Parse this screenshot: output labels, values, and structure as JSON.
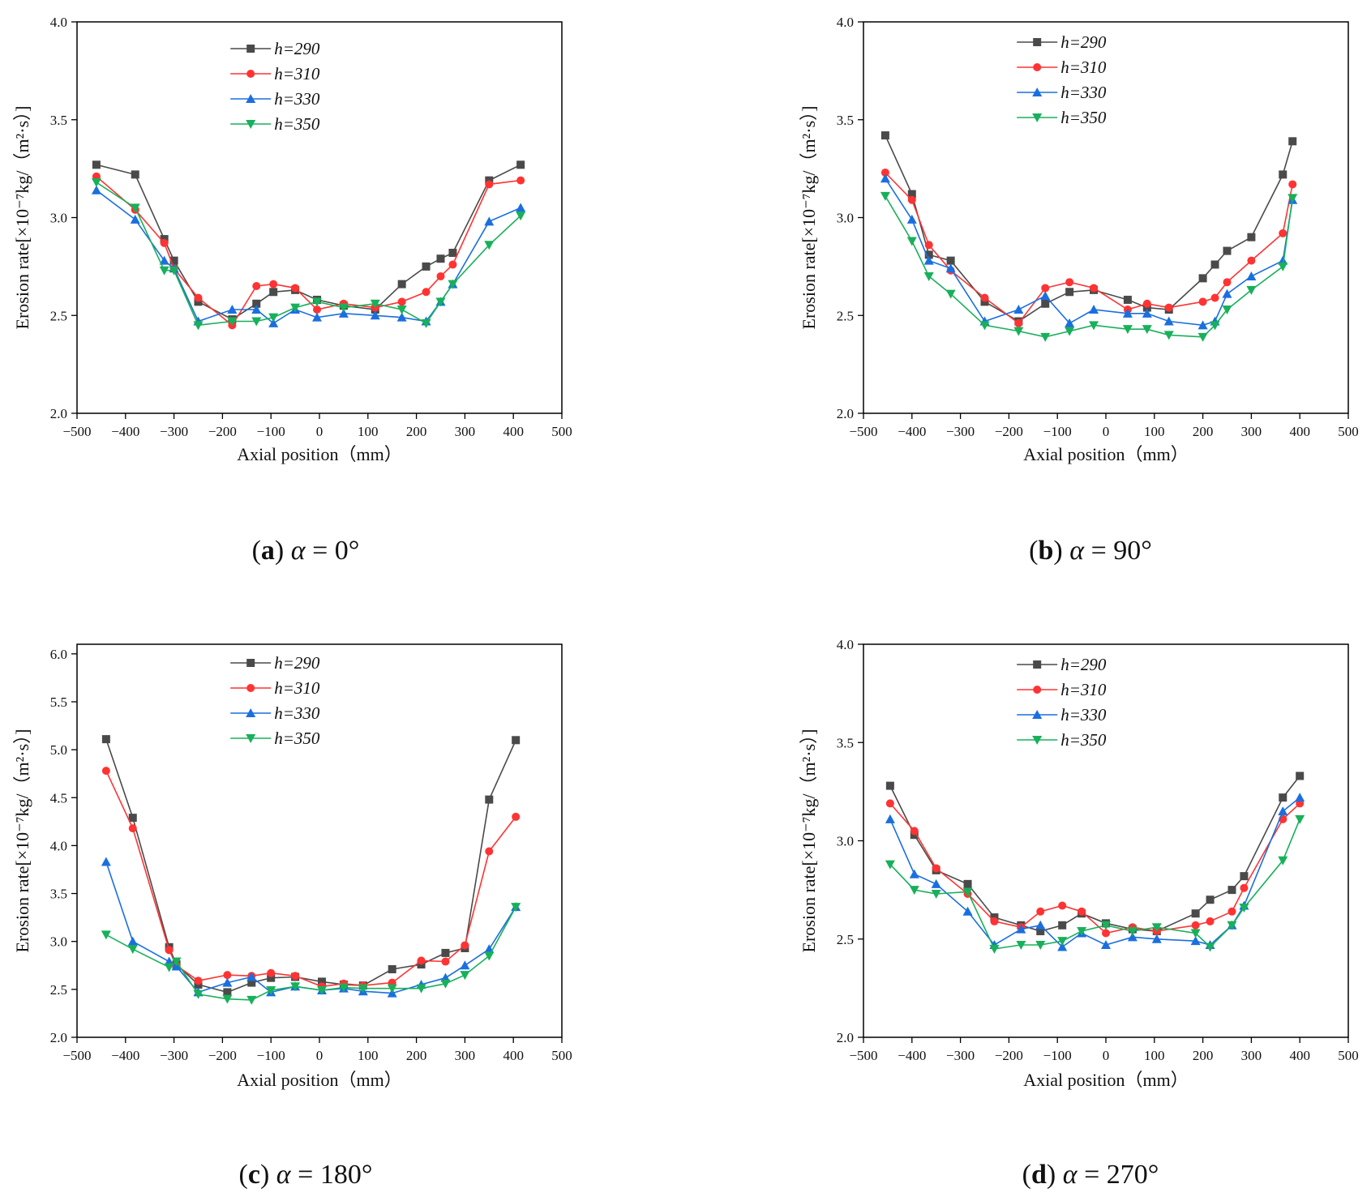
{
  "chart_data": [
    {
      "type": "line",
      "caption": {
        "letter": "a",
        "symbol": "α",
        "value": " = 0°"
      },
      "xlabel": "Axial position（mm）",
      "ylabel": "Erosion rate[×10⁻⁷kg/（m²·s）]",
      "xlim": [
        -500,
        500
      ],
      "ylim": [
        2.0,
        4.0
      ],
      "xticks": [
        "−500",
        "−400",
        "−300",
        "−200",
        "−100",
        "0",
        "100",
        "200",
        "300",
        "400",
        "500"
      ],
      "yticks": [
        "2.0",
        "2.5",
        "3.0",
        "3.5",
        "4.0"
      ],
      "legend_placement": "top-center",
      "series": [
        {
          "name": "h=290",
          "color": "#4a4a4a",
          "marker": "square",
          "x": [
            -460,
            -380,
            -320,
            -300,
            -250,
            -180,
            -130,
            -95,
            -50,
            -5,
            50,
            115,
            170,
            220,
            250,
            275,
            350,
            415
          ],
          "y": [
            3.27,
            3.22,
            2.89,
            2.78,
            2.57,
            2.48,
            2.56,
            2.62,
            2.63,
            2.58,
            2.55,
            2.53,
            2.66,
            2.75,
            2.79,
            2.82,
            3.19,
            3.27
          ]
        },
        {
          "name": "h=310",
          "color": "#ff3333",
          "marker": "circle",
          "x": [
            -460,
            -380,
            -320,
            -300,
            -250,
            -180,
            -130,
            -95,
            -50,
            -5,
            50,
            115,
            170,
            220,
            250,
            275,
            350,
            415
          ],
          "y": [
            3.21,
            3.04,
            2.87,
            2.74,
            2.59,
            2.45,
            2.65,
            2.66,
            2.64,
            2.53,
            2.56,
            2.54,
            2.57,
            2.62,
            2.7,
            2.76,
            3.17,
            3.19
          ]
        },
        {
          "name": "h=330",
          "color": "#1a6fdf",
          "marker": "triangle-up",
          "x": [
            -460,
            -380,
            -320,
            -300,
            -250,
            -180,
            -130,
            -95,
            -50,
            -5,
            50,
            115,
            170,
            220,
            250,
            275,
            350,
            415
          ],
          "y": [
            3.14,
            2.99,
            2.78,
            2.74,
            2.47,
            2.53,
            2.53,
            2.46,
            2.53,
            2.49,
            2.51,
            2.5,
            2.49,
            2.47,
            2.57,
            2.66,
            2.98,
            3.05
          ]
        },
        {
          "name": "h=350",
          "color": "#18b05a",
          "marker": "triangle-down",
          "x": [
            -460,
            -380,
            -320,
            -300,
            -250,
            -180,
            -130,
            -95,
            -50,
            -5,
            50,
            115,
            170,
            220,
            250,
            275,
            350,
            415
          ],
          "y": [
            3.18,
            3.05,
            2.73,
            2.73,
            2.45,
            2.47,
            2.47,
            2.49,
            2.54,
            2.57,
            2.54,
            2.56,
            2.53,
            2.46,
            2.57,
            2.66,
            2.86,
            3.01
          ]
        }
      ]
    },
    {
      "type": "line",
      "caption": {
        "letter": "b",
        "symbol": "α",
        "value": " = 90°"
      },
      "xlabel": "Axial position（mm）",
      "ylabel": "Erosion rate[×10⁻⁷kg/（m²·s）]",
      "xlim": [
        -500,
        500
      ],
      "ylim": [
        2.0,
        4.0
      ],
      "xticks": [
        "−500",
        "−400",
        "−300",
        "−200",
        "−100",
        "0",
        "100",
        "200",
        "300",
        "400",
        "500"
      ],
      "yticks": [
        "2.0",
        "2.5",
        "3.0",
        "3.5",
        "4.0"
      ],
      "legend_placement": "top-center",
      "series": [
        {
          "name": "h=290",
          "color": "#4a4a4a",
          "marker": "square",
          "x": [
            -455,
            -400,
            -365,
            -320,
            -250,
            -180,
            -125,
            -75,
            -25,
            45,
            85,
            130,
            200,
            225,
            250,
            300,
            365,
            385
          ],
          "y": [
            3.42,
            3.12,
            2.81,
            2.78,
            2.57,
            2.47,
            2.56,
            2.62,
            2.63,
            2.58,
            2.54,
            2.53,
            2.69,
            2.76,
            2.83,
            2.9,
            3.22,
            3.39
          ]
        },
        {
          "name": "h=310",
          "color": "#ff3333",
          "marker": "circle",
          "x": [
            -455,
            -400,
            -365,
            -320,
            -250,
            -180,
            -125,
            -75,
            -25,
            45,
            85,
            130,
            200,
            225,
            250,
            300,
            365,
            385
          ],
          "y": [
            3.23,
            3.09,
            2.86,
            2.73,
            2.59,
            2.46,
            2.64,
            2.67,
            2.64,
            2.53,
            2.56,
            2.54,
            2.57,
            2.59,
            2.67,
            2.78,
            2.92,
            3.17
          ]
        },
        {
          "name": "h=330",
          "color": "#1a6fdf",
          "marker": "triangle-up",
          "x": [
            -455,
            -400,
            -365,
            -320,
            -250,
            -180,
            -125,
            -75,
            -25,
            45,
            85,
            130,
            200,
            225,
            250,
            300,
            365,
            385
          ],
          "y": [
            3.2,
            2.99,
            2.78,
            2.74,
            2.47,
            2.53,
            2.6,
            2.46,
            2.53,
            2.51,
            2.51,
            2.47,
            2.45,
            2.47,
            2.61,
            2.7,
            2.78,
            3.09
          ]
        },
        {
          "name": "h=350",
          "color": "#18b05a",
          "marker": "triangle-down",
          "x": [
            -455,
            -400,
            -365,
            -320,
            -250,
            -180,
            -125,
            -75,
            -25,
            45,
            85,
            130,
            200,
            225,
            250,
            300,
            365,
            385
          ],
          "y": [
            3.11,
            2.88,
            2.7,
            2.61,
            2.45,
            2.42,
            2.39,
            2.42,
            2.45,
            2.43,
            2.43,
            2.4,
            2.39,
            2.45,
            2.53,
            2.63,
            2.75,
            3.1
          ]
        }
      ]
    },
    {
      "type": "line",
      "caption": {
        "letter": "c",
        "symbol": "α",
        "value": " = 180°"
      },
      "xlabel": "Axial position（mm）",
      "ylabel": "Erosion rate[×10⁻⁷kg/（m²·s）]",
      "xlim": [
        -500,
        500
      ],
      "ylim": [
        2.0,
        6.1
      ],
      "xticks": [
        "−500",
        "−400",
        "−300",
        "−200",
        "−100",
        "0",
        "100",
        "200",
        "300",
        "400",
        "500"
      ],
      "yticks": [
        "2.0",
        "2.5",
        "3.0",
        "3.5",
        "4.0",
        "4.5",
        "5.0",
        "5.5",
        "6.0"
      ],
      "legend_placement": "top-center",
      "series": [
        {
          "name": "h=290",
          "color": "#4a4a4a",
          "marker": "square",
          "x": [
            -440,
            -385,
            -310,
            -295,
            -250,
            -190,
            -140,
            -100,
            -50,
            5,
            50,
            90,
            150,
            210,
            260,
            300,
            350,
            405
          ],
          "y": [
            5.11,
            4.29,
            2.94,
            2.76,
            2.55,
            2.47,
            2.57,
            2.62,
            2.63,
            2.58,
            2.55,
            2.54,
            2.71,
            2.76,
            2.88,
            2.93,
            4.48,
            5.1
          ]
        },
        {
          "name": "h=310",
          "color": "#ff3333",
          "marker": "circle",
          "x": [
            -440,
            -385,
            -310,
            -295,
            -250,
            -190,
            -140,
            -100,
            -50,
            5,
            50,
            90,
            150,
            210,
            260,
            300,
            350,
            405
          ],
          "y": [
            4.78,
            4.18,
            2.91,
            2.75,
            2.59,
            2.65,
            2.64,
            2.67,
            2.64,
            2.53,
            2.56,
            2.54,
            2.57,
            2.8,
            2.79,
            2.96,
            3.94,
            4.3
          ]
        },
        {
          "name": "h=330",
          "color": "#1a6fdf",
          "marker": "triangle-up",
          "x": [
            -440,
            -385,
            -310,
            -295,
            -250,
            -190,
            -140,
            -100,
            -50,
            5,
            50,
            90,
            150,
            210,
            260,
            300,
            350,
            405
          ],
          "y": [
            3.83,
            3.0,
            2.79,
            2.74,
            2.47,
            2.57,
            2.63,
            2.47,
            2.53,
            2.49,
            2.51,
            2.48,
            2.46,
            2.55,
            2.62,
            2.75,
            2.92,
            3.36
          ]
        },
        {
          "name": "h=350",
          "color": "#18b05a",
          "marker": "triangle-down",
          "x": [
            -440,
            -385,
            -310,
            -295,
            -250,
            -190,
            -140,
            -100,
            -50,
            5,
            50,
            90,
            150,
            210,
            260,
            300,
            350,
            405
          ],
          "y": [
            3.07,
            2.92,
            2.73,
            2.79,
            2.45,
            2.4,
            2.39,
            2.49,
            2.53,
            2.49,
            2.52,
            2.51,
            2.51,
            2.51,
            2.56,
            2.65,
            2.85,
            3.36
          ]
        }
      ]
    },
    {
      "type": "line",
      "caption": {
        "letter": "d",
        "symbol": "α",
        "value": " = 270°"
      },
      "xlabel": "Axial position（mm）",
      "ylabel": "Erosion rate[×10⁻⁷kg/（m²·s）]",
      "xlim": [
        -500,
        500
      ],
      "ylim": [
        2.0,
        4.0
      ],
      "xticks": [
        "−500",
        "−400",
        "−300",
        "−200",
        "−100",
        "0",
        "100",
        "200",
        "300",
        "400",
        "500"
      ],
      "yticks": [
        "2.0",
        "2.5",
        "3.0",
        "3.5",
        "4.0"
      ],
      "legend_placement": "top-center",
      "series": [
        {
          "name": "h=290",
          "color": "#4a4a4a",
          "marker": "square",
          "x": [
            -445,
            -395,
            -350,
            -285,
            -230,
            -175,
            -135,
            -90,
            -50,
            0,
            55,
            105,
            185,
            215,
            260,
            285,
            365,
            400
          ],
          "y": [
            3.28,
            3.03,
            2.85,
            2.78,
            2.61,
            2.57,
            2.54,
            2.57,
            2.63,
            2.58,
            2.55,
            2.54,
            2.63,
            2.7,
            2.75,
            2.82,
            3.22,
            3.33
          ]
        },
        {
          "name": "h=310",
          "color": "#ff3333",
          "marker": "circle",
          "x": [
            -445,
            -395,
            -350,
            -285,
            -230,
            -175,
            -135,
            -90,
            -50,
            0,
            55,
            105,
            185,
            215,
            260,
            285,
            365,
            400
          ],
          "y": [
            3.19,
            3.05,
            2.86,
            2.73,
            2.59,
            2.56,
            2.64,
            2.67,
            2.64,
            2.53,
            2.56,
            2.54,
            2.57,
            2.59,
            2.64,
            2.76,
            3.11,
            3.19
          ]
        },
        {
          "name": "h=330",
          "color": "#1a6fdf",
          "marker": "triangle-up",
          "x": [
            -445,
            -395,
            -350,
            -285,
            -230,
            -175,
            -135,
            -90,
            -50,
            0,
            55,
            105,
            185,
            215,
            260,
            285,
            365,
            400
          ],
          "y": [
            3.11,
            2.83,
            2.78,
            2.64,
            2.47,
            2.55,
            2.57,
            2.46,
            2.53,
            2.47,
            2.51,
            2.5,
            2.49,
            2.47,
            2.57,
            2.67,
            3.15,
            3.22
          ]
        },
        {
          "name": "h=350",
          "color": "#18b05a",
          "marker": "triangle-down",
          "x": [
            -445,
            -395,
            -350,
            -285,
            -230,
            -175,
            -135,
            -90,
            -50,
            0,
            55,
            105,
            185,
            215,
            260,
            285,
            365,
            400
          ],
          "y": [
            2.88,
            2.75,
            2.73,
            2.74,
            2.45,
            2.47,
            2.47,
            2.49,
            2.54,
            2.57,
            2.54,
            2.56,
            2.53,
            2.46,
            2.57,
            2.66,
            2.9,
            3.11
          ]
        }
      ]
    }
  ]
}
